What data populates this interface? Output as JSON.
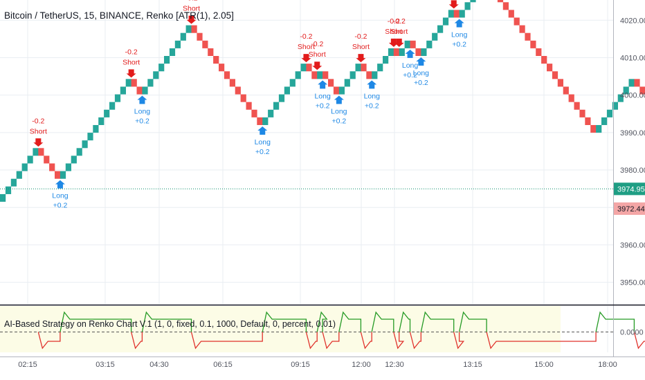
{
  "header": {
    "title": "Bitcoin / TetherUS, 15, BINANCE, Renko [ATR(1), 2.05]"
  },
  "colors": {
    "up": "#26a69a",
    "down": "#ef5350",
    "short_label": "#e21b1b",
    "long_label": "#1e88e5",
    "grid": "#e9edf2",
    "price_line": "#0b8f6a",
    "indicator_bg": "#fcfce6",
    "indicator_up": "#249a24",
    "indicator_down": "#e0302a"
  },
  "chart_data": [
    {
      "type": "renko",
      "y_ticks": [
        "4020.00",
        "4010.00",
        "4000.00",
        "3990.00",
        "3980.00",
        "3970.00",
        "3960.00",
        "3950.00"
      ],
      "ylim": [
        3944.2,
        4025.4
      ],
      "box_size": 2.05,
      "bricks": [
        {
          "dir": "up",
          "n": 7,
          "start": 3971.5
        },
        {
          "dir": "down",
          "n": 4
        },
        {
          "dir": "up",
          "n": 13
        },
        {
          "dir": "down",
          "n": 2
        },
        {
          "dir": "up",
          "n": 9
        },
        {
          "dir": "down",
          "n": 13
        },
        {
          "dir": "up",
          "n": 8
        },
        {
          "dir": "down",
          "n": 2
        },
        {
          "dir": "up",
          "n": 1
        },
        {
          "dir": "down",
          "n": 3
        },
        {
          "dir": "up",
          "n": 4
        },
        {
          "dir": "down",
          "n": 2
        },
        {
          "dir": "up",
          "n": 4
        },
        {
          "dir": "down",
          "n": 1
        },
        {
          "dir": "up",
          "n": 2
        },
        {
          "dir": "down",
          "n": 2
        },
        {
          "dir": "up",
          "n": 6
        },
        {
          "dir": "down",
          "n": 1
        },
        {
          "dir": "up",
          "n": 5
        },
        {
          "dir": "down",
          "n": 20
        },
        {
          "dir": "up",
          "n": 7
        },
        {
          "dir": "down",
          "n": 4
        },
        {
          "dir": "up",
          "n": 6
        }
      ],
      "signals": [
        {
          "type": "Short",
          "value": "-0.2"
        },
        {
          "type": "Long",
          "value": "+0.2"
        },
        {
          "type": "Short",
          "value": "-0.2"
        },
        {
          "type": "Long",
          "value": "+0.2"
        },
        {
          "type": "Short",
          "value": "-0.2"
        },
        {
          "type": "Long",
          "value": "+0.2"
        },
        {
          "type": "Short",
          "value": "-0.2"
        },
        {
          "type": "Short",
          "value": "-0.2"
        },
        {
          "type": "Long",
          "value": "+0.2"
        },
        {
          "type": "Long",
          "value": "+0.2"
        },
        {
          "type": "Short",
          "value": "-0.2"
        },
        {
          "type": "Long",
          "value": "+0.2"
        },
        {
          "type": "Short",
          "value": "-0.2"
        },
        {
          "type": "Short",
          "value": "-0.2"
        },
        {
          "type": "Long",
          "value": "+0.2"
        },
        {
          "type": "Long",
          "value": "+0.2"
        },
        {
          "type": "Short",
          "value": "-0.2"
        },
        {
          "type": "Long",
          "value": "+0.2"
        }
      ],
      "current_price": "3974.95",
      "previous_price": "3972.44"
    },
    {
      "type": "line",
      "title": "AI-Based Strategy on Renko Chart V.1 (1, 0, fixed, 0.1, 1000, Default, 0, percent, 0.01)",
      "y_ticks": [
        "0.0000"
      ],
      "levels": [
        1,
        -1
      ]
    }
  ],
  "x_ticks": [
    "02:15",
    "03:15",
    "04:30",
    "06:15",
    "09:15",
    "12:00",
    "12:30",
    "13:15",
    "15:00",
    "18:00"
  ]
}
